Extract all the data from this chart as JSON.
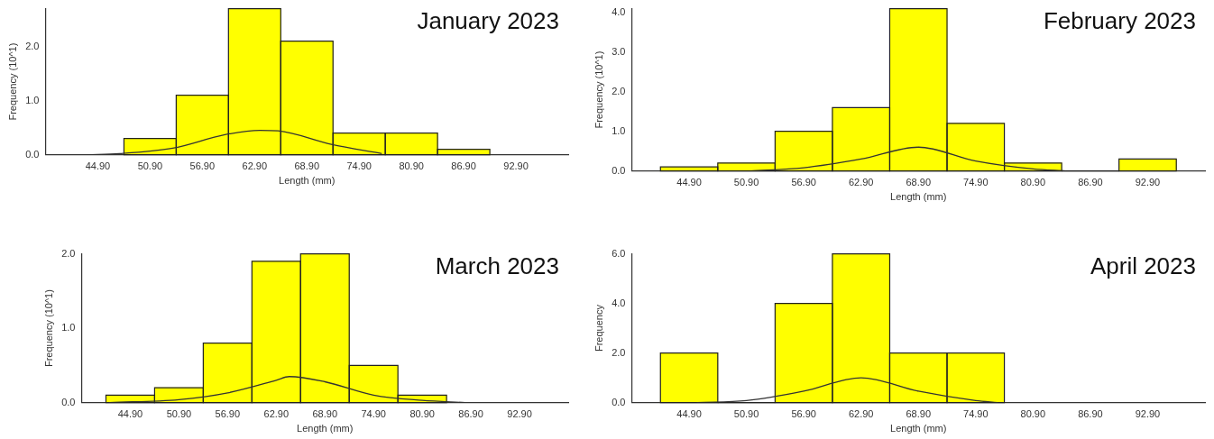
{
  "chart_data": [
    {
      "type": "histogram",
      "title": "January 2023",
      "xlabel": "Length (mm)",
      "ylabel": "Frequency (10^1)",
      "color": "#ffff00",
      "bins": [
        47.9,
        53.9,
        59.9,
        65.9,
        71.9,
        77.9,
        83.9,
        89.9
      ],
      "values": [
        0.3,
        1.1,
        2.7,
        2.1,
        0.4,
        0.4,
        0.1
      ],
      "series": [
        {
          "type": "line",
          "color": "#333333",
          "x": [
            43.6,
            47.4,
            53.5,
            59.5,
            63.5,
            65.6,
            71.7,
            77.5
          ],
          "values": [
            0,
            0.02,
            0.12,
            0.37,
            0.45,
            0.44,
            0.19,
            0.02
          ]
        }
      ],
      "xlim": [
        38.9,
        98.9
      ],
      "ylim": [
        0,
        2.7
      ],
      "xticks": [
        {
          "value": 44.9,
          "label": "44.90"
        },
        {
          "value": 50.9,
          "label": "50.90"
        },
        {
          "value": 56.9,
          "label": "56.90"
        },
        {
          "value": 62.9,
          "label": "62.90"
        },
        {
          "value": 68.9,
          "label": "68.90"
        },
        {
          "value": 74.9,
          "label": "74.90"
        },
        {
          "value": 80.9,
          "label": "80.90"
        },
        {
          "value": 86.9,
          "label": "86.90"
        },
        {
          "value": 92.9,
          "label": "92.90"
        }
      ],
      "yticks": [
        {
          "value": 0,
          "label": "0.0"
        },
        {
          "value": 1,
          "label": "1.0"
        },
        {
          "value": 2,
          "label": "2.0"
        }
      ]
    },
    {
      "type": "histogram",
      "title": "February 2023",
      "xlabel": "Length (mm)",
      "ylabel": "Frequency (10^1)",
      "color": "#ffff00",
      "bins": [
        41.9,
        47.9,
        53.9,
        59.9,
        65.9,
        71.9,
        77.9,
        83.9,
        89.9,
        95.9
      ],
      "values": [
        0.1,
        0.2,
        1.0,
        1.6,
        4.1,
        1.2,
        0.2,
        0,
        0.3
      ],
      "series": [
        {
          "type": "line",
          "color": "#333333",
          "x": [
            51.3,
            56.9,
            62.9,
            68.9,
            74.9,
            80.9,
            84.3
          ],
          "values": [
            0,
            0.08,
            0.3,
            0.6,
            0.25,
            0.05,
            0
          ]
        }
      ],
      "xlim": [
        38.9,
        98.9
      ],
      "ylim": [
        0,
        4.1
      ],
      "xticks": [
        {
          "value": 44.9,
          "label": "44.90"
        },
        {
          "value": 50.9,
          "label": "50.90"
        },
        {
          "value": 56.9,
          "label": "56.90"
        },
        {
          "value": 62.9,
          "label": "62.90"
        },
        {
          "value": 68.9,
          "label": "68.90"
        },
        {
          "value": 74.9,
          "label": "74.90"
        },
        {
          "value": 80.9,
          "label": "80.90"
        },
        {
          "value": 86.9,
          "label": "86.90"
        },
        {
          "value": 92.9,
          "label": "92.90"
        }
      ],
      "yticks": [
        {
          "value": 0,
          "label": "0.0"
        },
        {
          "value": 1,
          "label": "1.0"
        },
        {
          "value": 2,
          "label": "2.0"
        },
        {
          "value": 3,
          "label": "3.0"
        },
        {
          "value": 4,
          "label": "4.0"
        }
      ]
    },
    {
      "type": "histogram",
      "title": "March 2023",
      "xlabel": "Length (mm)",
      "ylabel": "Frequency (10^1)",
      "color": "#ffff00",
      "bins": [
        41.9,
        47.9,
        53.9,
        59.9,
        65.9,
        71.9,
        77.9,
        83.9
      ],
      "values": [
        0.1,
        0.2,
        0.8,
        1.9,
        2.0,
        0.5,
        0.1
      ],
      "series": [
        {
          "type": "line",
          "color": "#333333",
          "x": [
            42.3,
            50.9,
            56.9,
            62.9,
            64.5,
            68.9,
            74.9,
            80.9,
            86.2
          ],
          "values": [
            0,
            0.04,
            0.13,
            0.3,
            0.35,
            0.28,
            0.1,
            0.03,
            0
          ]
        }
      ],
      "xlim": [
        38.9,
        98.9
      ],
      "ylim": [
        0,
        2.0
      ],
      "xticks": [
        {
          "value": 44.9,
          "label": "44.90"
        },
        {
          "value": 50.9,
          "label": "50.90"
        },
        {
          "value": 56.9,
          "label": "56.90"
        },
        {
          "value": 62.9,
          "label": "62.90"
        },
        {
          "value": 68.9,
          "label": "68.90"
        },
        {
          "value": 74.9,
          "label": "74.90"
        },
        {
          "value": 80.9,
          "label": "80.90"
        },
        {
          "value": 86.9,
          "label": "86.90"
        },
        {
          "value": 92.9,
          "label": "92.90"
        }
      ],
      "yticks": [
        {
          "value": 0,
          "label": "0.0"
        },
        {
          "value": 1,
          "label": "1.0"
        },
        {
          "value": 2,
          "label": "2.0"
        }
      ]
    },
    {
      "type": "histogram",
      "title": "April 2023",
      "xlabel": "Length (mm)",
      "ylabel": "Frequency",
      "color": "#ffff00",
      "bins": [
        41.9,
        47.9,
        53.9,
        59.9,
        65.9,
        71.9,
        77.9
      ],
      "values": [
        2,
        0,
        4,
        6,
        2,
        2
      ],
      "series": [
        {
          "type": "line",
          "color": "#333333",
          "x": [
            45.7,
            50.9,
            56.9,
            62.9,
            68.9,
            74.9,
            77.2
          ],
          "values": [
            0,
            0.08,
            0.46,
            1.0,
            0.46,
            0.08,
            0
          ]
        }
      ],
      "xlim": [
        38.9,
        98.9
      ],
      "ylim": [
        0,
        6
      ],
      "xticks": [
        {
          "value": 44.9,
          "label": "44.90"
        },
        {
          "value": 50.9,
          "label": "50.90"
        },
        {
          "value": 56.9,
          "label": "56.90"
        },
        {
          "value": 62.9,
          "label": "62.90"
        },
        {
          "value": 68.9,
          "label": "68.90"
        },
        {
          "value": 74.9,
          "label": "74.90"
        },
        {
          "value": 80.9,
          "label": "80.90"
        },
        {
          "value": 86.9,
          "label": "86.90"
        },
        {
          "value": 92.9,
          "label": "92.90"
        }
      ],
      "yticks": [
        {
          "value": 0,
          "label": "0.0"
        },
        {
          "value": 2,
          "label": "2.0"
        },
        {
          "value": 4,
          "label": "4.0"
        },
        {
          "value": 6,
          "label": "6.0"
        }
      ]
    }
  ]
}
